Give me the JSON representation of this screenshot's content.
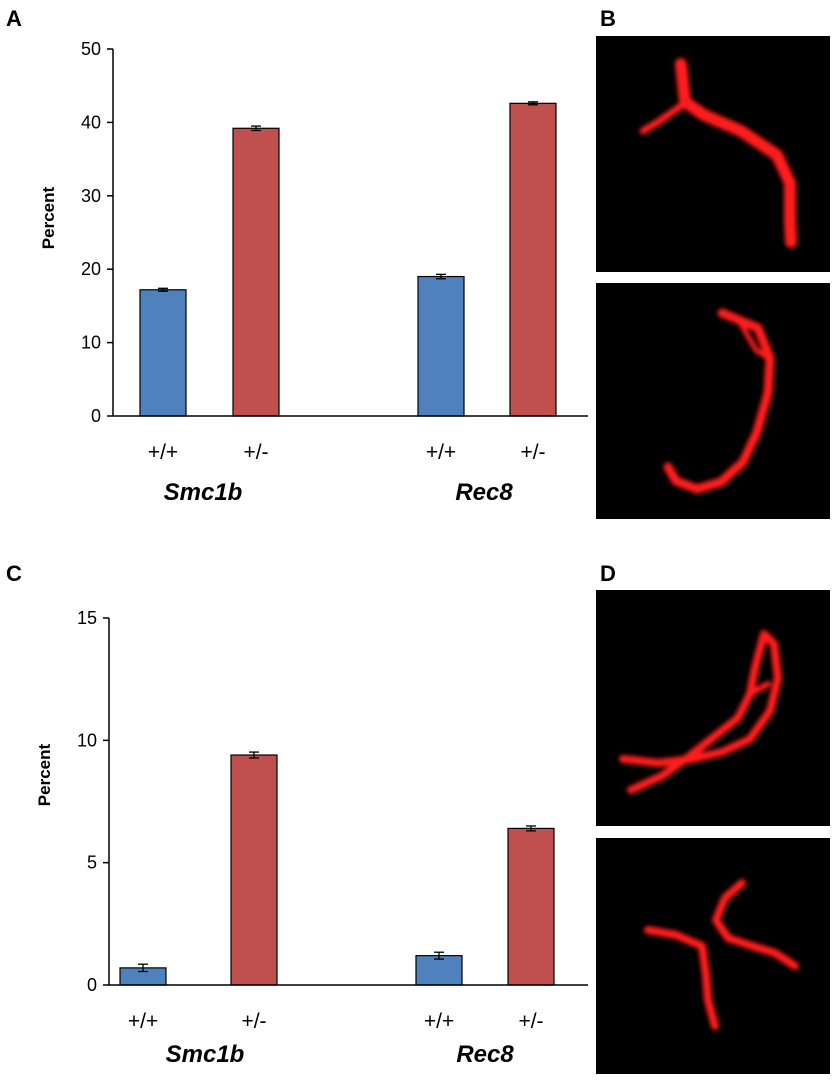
{
  "panel_labels": [
    "A",
    "B",
    "C",
    "D"
  ],
  "colors": {
    "wildtype": "#4F81BD",
    "heterozygous": "#C0504D",
    "chromosome": "#ff1a1a",
    "micrograph_bg": "#000000"
  },
  "chart_data": [
    {
      "panel": "A",
      "type": "bar",
      "ylabel": "Percent",
      "ylim": [
        0,
        50
      ],
      "yticks": [
        0,
        10,
        20,
        30,
        40,
        50
      ],
      "groups": [
        {
          "name": "Smc1b",
          "categories": [
            "+/+",
            "+/-"
          ],
          "values": [
            17.2,
            39.2
          ],
          "errors": [
            0.2,
            0.3
          ]
        },
        {
          "name": "Rec8",
          "categories": [
            "+/+",
            "+/-"
          ],
          "values": [
            19.0,
            42.6
          ],
          "errors": [
            0.3,
            0.2
          ]
        }
      ],
      "grid": false
    },
    {
      "panel": "C",
      "type": "bar",
      "ylabel": "Percent",
      "ylim": [
        0,
        15
      ],
      "yticks": [
        0,
        5,
        10,
        15
      ],
      "groups": [
        {
          "name": "Smc1b",
          "categories": [
            "+/+",
            "+/-"
          ],
          "values": [
            0.7,
            9.4
          ],
          "errors": [
            0.15,
            0.12
          ]
        },
        {
          "name": "Rec8",
          "categories": [
            "+/+",
            "+/-"
          ],
          "values": [
            1.2,
            6.4
          ],
          "errors": [
            0.14,
            0.1
          ]
        }
      ],
      "grid": false
    }
  ],
  "micrographs": [
    {
      "panel": "B",
      "content": "chromosome-micrograph"
    },
    {
      "panel": "B",
      "content": "chromosome-micrograph"
    },
    {
      "panel": "D",
      "content": "chromosome-micrograph"
    },
    {
      "panel": "D",
      "content": "chromosome-micrograph"
    }
  ]
}
